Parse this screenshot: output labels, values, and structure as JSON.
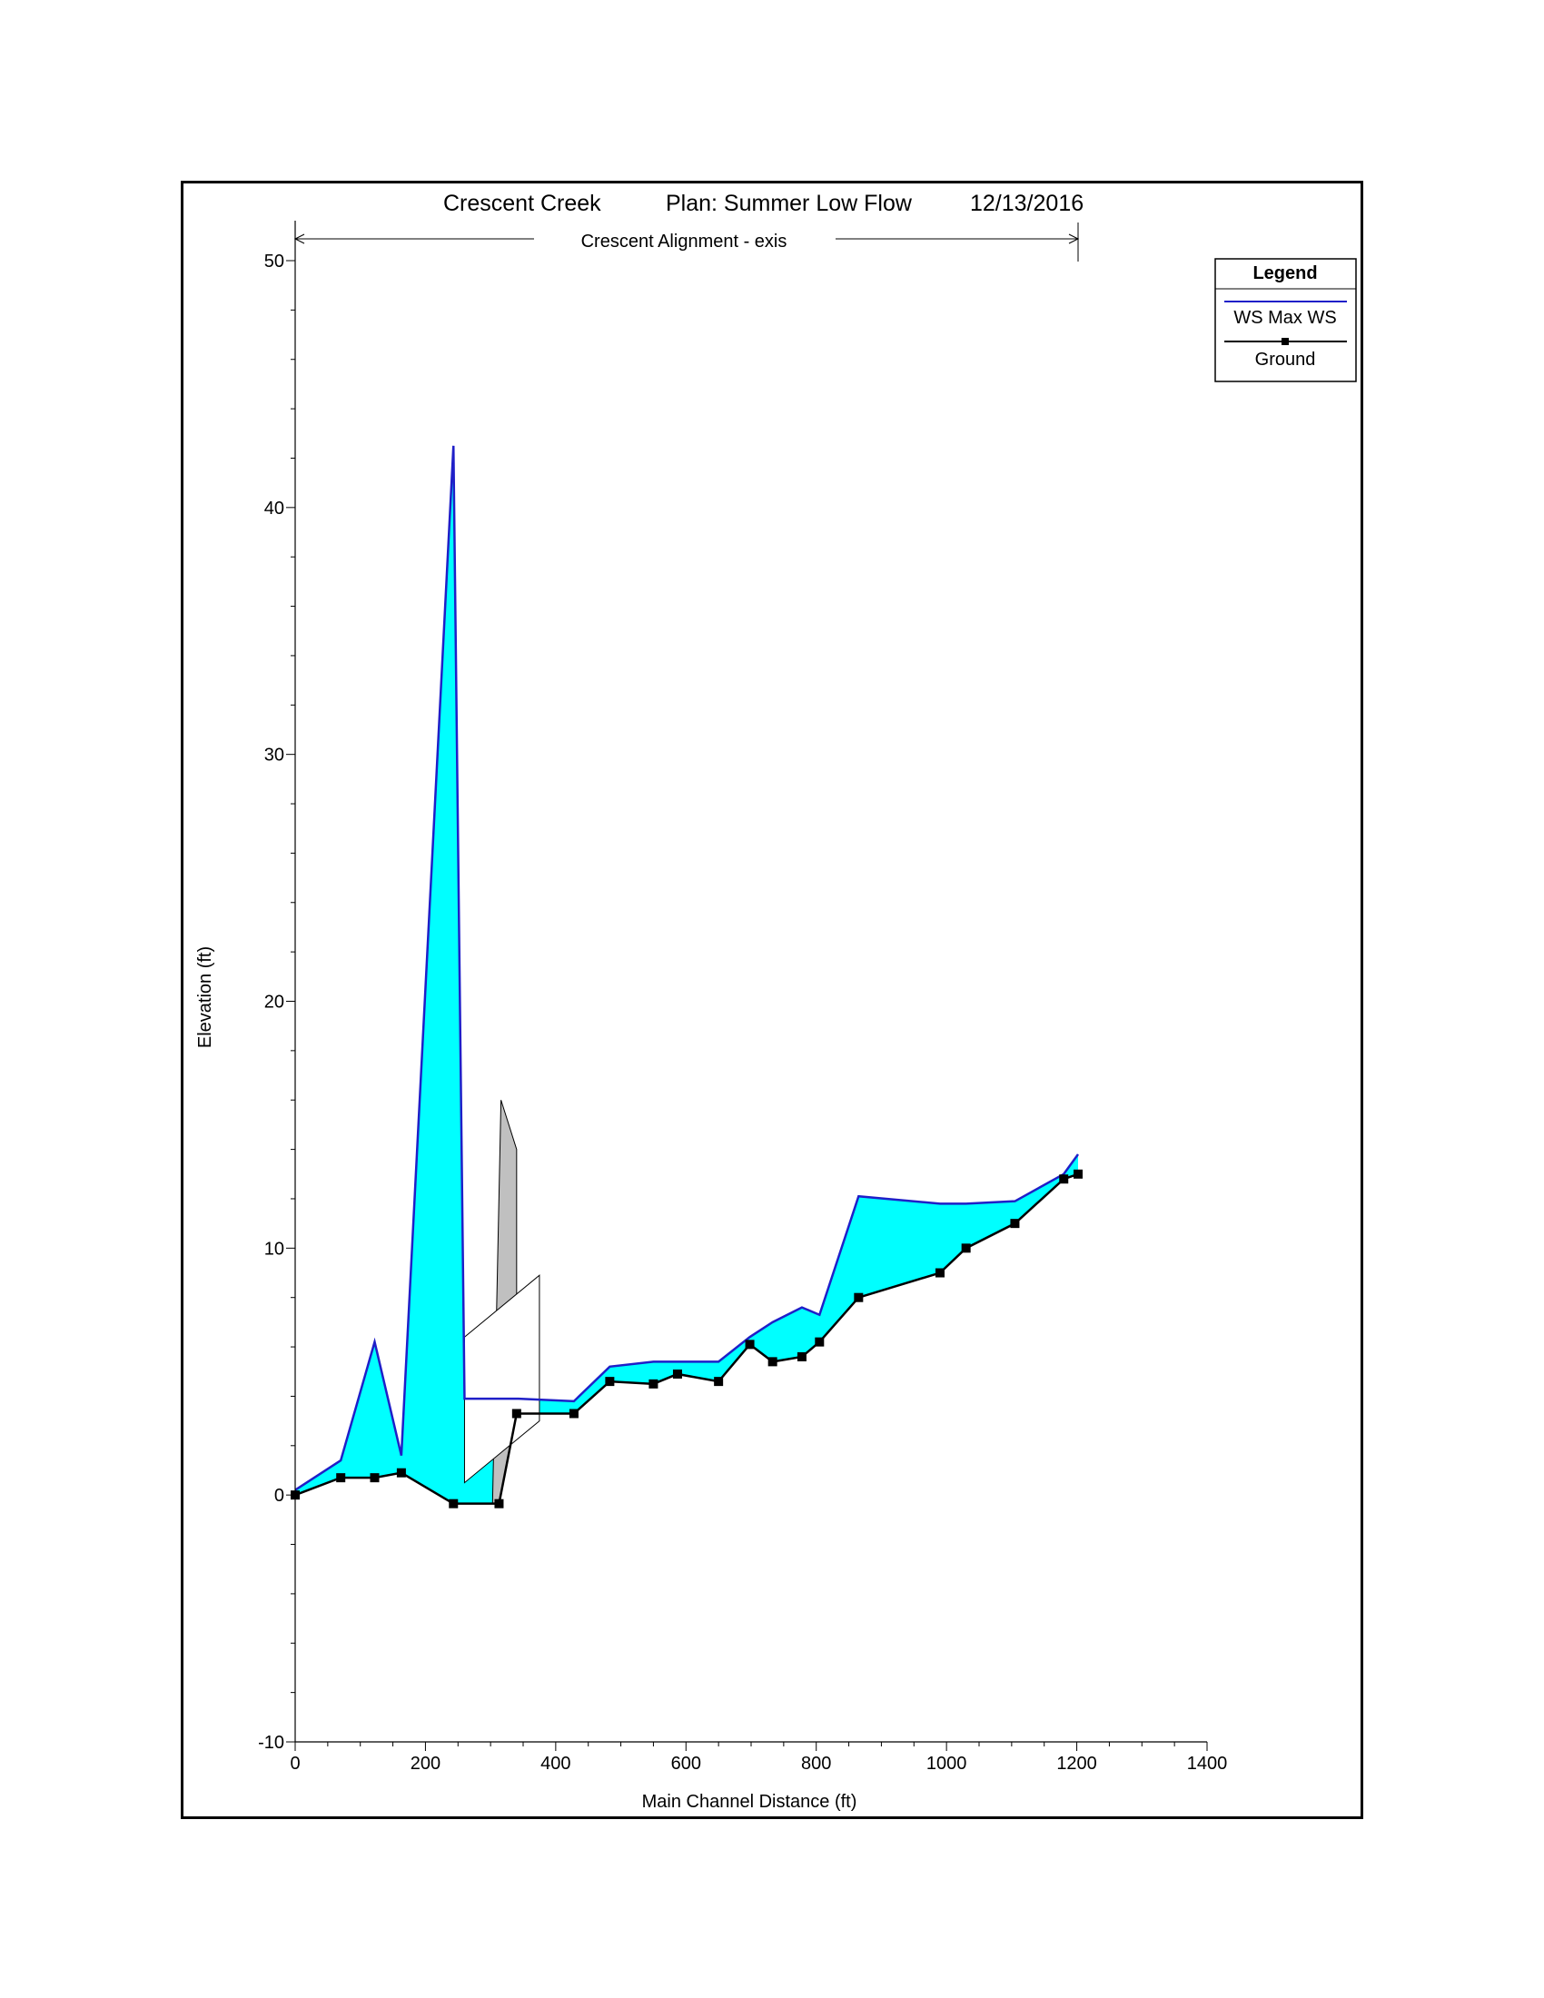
{
  "chart_data": {
    "type": "line",
    "title": {
      "project": "Crescent Creek",
      "plan": "Plan: Summer Low Flow",
      "date": "12/13/2016"
    },
    "reach_label": "Crescent Alignment - exis",
    "xlabel": "Main Channel Distance (ft)",
    "ylabel": "Elevation (ft)",
    "xlim": [
      0,
      1400
    ],
    "ylim": [
      -10,
      50
    ],
    "x_ticks": [
      "0",
      "200",
      "400",
      "600",
      "800",
      "1000",
      "1200",
      "1400"
    ],
    "y_ticks": [
      "-10",
      "0",
      "10",
      "20",
      "30",
      "40",
      "50"
    ],
    "reach_extent": [
      0,
      1202
    ],
    "legend": {
      "title": "Legend",
      "entries": [
        "WS  Max WS",
        "Ground"
      ],
      "placement": "top-right"
    },
    "series": [
      {
        "name": "WS  Max WS",
        "color": "#1f1fc8",
        "fill": "#00ffff",
        "x": [
          0,
          70,
          122,
          163,
          243,
          260,
          343,
          428,
          483,
          550,
          587,
          650,
          698,
          733,
          778,
          805,
          865,
          990,
          1030,
          1105,
          1180,
          1202
        ],
        "y": [
          0.2,
          1.4,
          6.2,
          1.6,
          42.5,
          3.9,
          3.9,
          3.8,
          5.2,
          5.4,
          5.4,
          5.4,
          6.4,
          7.0,
          7.6,
          7.3,
          12.1,
          11.8,
          11.8,
          11.9,
          13.0,
          13.8
        ]
      },
      {
        "name": "Ground",
        "color": "#000000",
        "marker": "square",
        "x": [
          0,
          70,
          122,
          163,
          243,
          313,
          340,
          428,
          483,
          550,
          587,
          650,
          698,
          733,
          778,
          805,
          865,
          990,
          1030,
          1105,
          1180,
          1202
        ],
        "y": [
          0,
          0.7,
          0.7,
          0.9,
          -0.35,
          -0.35,
          3.3,
          3.3,
          4.6,
          4.5,
          4.9,
          4.6,
          6.1,
          5.4,
          5.6,
          6.2,
          8.0,
          9.0,
          10.0,
          11.0,
          12.8,
          13.0
        ]
      }
    ],
    "structures": [
      {
        "kind": "bridge-deck",
        "fill": "#c0c0c0",
        "polygon": [
          [
            303,
            -0.35
          ],
          [
            316,
            16.0
          ],
          [
            340,
            14.0
          ],
          [
            340,
            3.3
          ],
          [
            313,
            -0.35
          ]
        ]
      },
      {
        "kind": "culvert-outline",
        "fill": "#ffffff",
        "polygon": [
          [
            260,
            0.5
          ],
          [
            260,
            6.4
          ],
          [
            375,
            8.9
          ],
          [
            375,
            3.0
          ]
        ]
      }
    ]
  }
}
